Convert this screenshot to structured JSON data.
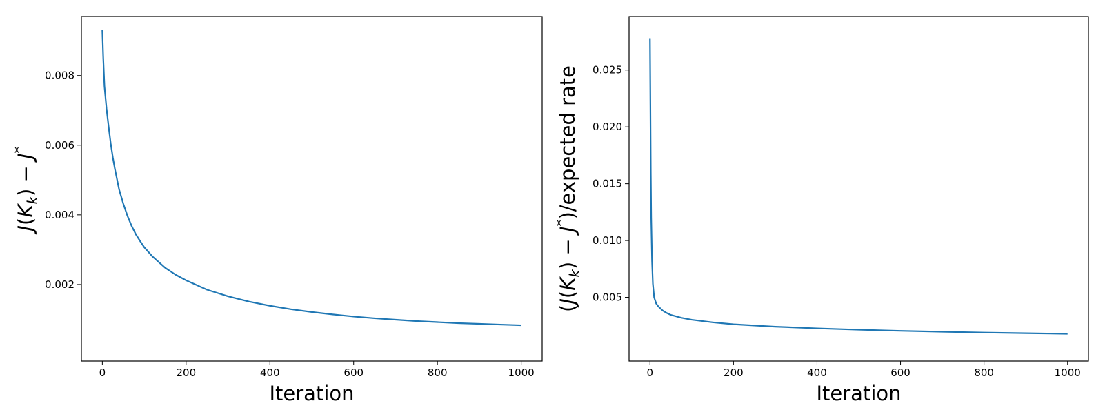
{
  "chart_data": [
    {
      "type": "line",
      "title": "",
      "xlabel": "Iteration",
      "ylabel": "J(K_k) − J*",
      "ylabel_parts": {
        "a": "J",
        "b": "(",
        "c": "K",
        "d": "k",
        "e": ") − ",
        "f": "J",
        "g": "*"
      },
      "xlim": [
        -50,
        1050
      ],
      "ylim": [
        -0.0,
        0.0093
      ],
      "xticks": [
        0,
        200,
        400,
        600,
        800,
        1000
      ],
      "xtick_labels": [
        "0",
        "200",
        "400",
        "600",
        "800",
        "1000"
      ],
      "yticks": [
        0.002,
        0.004,
        0.006,
        0.008
      ],
      "ytick_labels": [
        "0.002",
        "0.004",
        "0.006",
        "0.008"
      ],
      "grid": false,
      "series": [
        {
          "color": "#1f77b4",
          "x": [
            0,
            2,
            5,
            10,
            15,
            20,
            25,
            30,
            40,
            50,
            60,
            70,
            80,
            90,
            100,
            120,
            150,
            175,
            200,
            250,
            300,
            350,
            400,
            450,
            500,
            550,
            600,
            650,
            700,
            750,
            800,
            850,
            900,
            950,
            1000
          ],
          "y": [
            0.0093,
            0.00855,
            0.0077,
            0.00705,
            0.00653,
            0.00605,
            0.00565,
            0.00532,
            0.00473,
            0.00432,
            0.00397,
            0.00368,
            0.00344,
            0.00325,
            0.00307,
            0.0028,
            0.00248,
            0.00228,
            0.00212,
            0.00185,
            0.00166,
            0.00151,
            0.00139,
            0.00129,
            0.00121,
            0.00114,
            0.00108,
            0.00103,
            0.00099,
            0.00095,
            0.00092,
            0.00089,
            0.00087,
            0.00085,
            0.00083
          ]
        }
      ]
    },
    {
      "type": "line",
      "title": "",
      "xlabel": "Iteration",
      "ylabel": "(J(K_k) − J*)/expected rate",
      "ylabel_parts": {
        "a": "(",
        "b": "J",
        "c": "(",
        "d": "K",
        "e": "k",
        "f": ") − ",
        "g": "J",
        "h": "*",
        "i": ")/expected rate"
      },
      "xlim": [
        -50,
        1050
      ],
      "ylim": [
        -0.0,
        0.0285
      ],
      "xticks": [
        0,
        200,
        400,
        600,
        800,
        1000
      ],
      "xtick_labels": [
        "0",
        "200",
        "400",
        "600",
        "800",
        "1000"
      ],
      "yticks": [
        0.005,
        0.01,
        0.015,
        0.02,
        0.025
      ],
      "ytick_labels": [
        "0.005",
        "0.010",
        "0.015",
        "0.020",
        "0.025"
      ],
      "grid": false,
      "series": [
        {
          "color": "#1f77b4",
          "x": [
            0,
            1,
            2,
            3,
            5,
            7,
            10,
            15,
            20,
            30,
            40,
            50,
            75,
            100,
            150,
            200,
            300,
            400,
            500,
            600,
            700,
            800,
            900,
            1000
          ],
          "y": [
            0.0278,
            0.022,
            0.016,
            0.012,
            0.0082,
            0.0062,
            0.005,
            0.00445,
            0.0042,
            0.00385,
            0.00362,
            0.00345,
            0.0032,
            0.00303,
            0.0028,
            0.00263,
            0.00242,
            0.00227,
            0.00215,
            0.00205,
            0.00197,
            0.0019,
            0.00184,
            0.00179
          ]
        }
      ]
    }
  ]
}
